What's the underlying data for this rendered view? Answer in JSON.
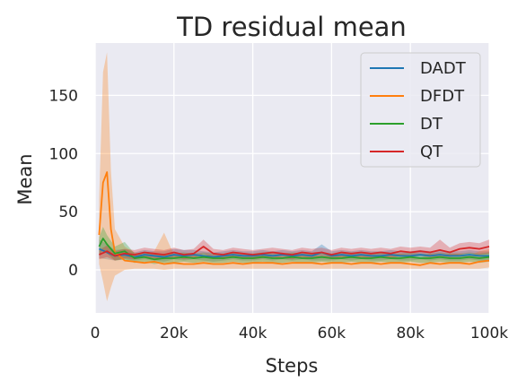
{
  "chart_data": {
    "type": "line",
    "title": "TD residual mean",
    "xlabel": "Steps",
    "ylabel": "Mean",
    "xlim": [
      0,
      100000
    ],
    "ylim": [
      -37,
      195
    ],
    "xticks": [
      0,
      20000,
      40000,
      60000,
      80000,
      100000
    ],
    "xtick_labels": [
      "0",
      "20k",
      "40k",
      "60k",
      "80k",
      "100k"
    ],
    "yticks": [
      0,
      50,
      100,
      150
    ],
    "ytick_labels": [
      "0",
      "50",
      "100",
      "150"
    ],
    "grid": true,
    "legend_position": "top-right",
    "series": [
      {
        "name": "DADT",
        "color": "#1f77b4",
        "x": [
          1000,
          3000,
          5000,
          7500,
          10000,
          12500,
          15000,
          17500,
          20000,
          22500,
          25000,
          27500,
          30000,
          32500,
          35000,
          37500,
          40000,
          42500,
          45000,
          47500,
          50000,
          52500,
          55000,
          57500,
          60000,
          62500,
          65000,
          67500,
          70000,
          72500,
          75000,
          77500,
          80000,
          82500,
          85000,
          87500,
          90000,
          92500,
          95000,
          97500,
          100000
        ],
        "y": [
          18,
          15,
          12,
          13,
          11,
          13,
          12,
          11,
          13,
          12,
          13,
          12,
          11,
          12,
          13,
          12,
          12,
          13,
          12,
          13,
          12,
          13,
          12,
          15,
          12,
          13,
          12,
          13,
          12,
          12,
          13,
          12,
          12,
          13,
          12,
          13,
          12,
          12,
          13,
          12,
          12
        ],
        "lower": [
          10,
          9,
          8,
          9,
          8,
          9,
          8,
          7,
          9,
          8,
          9,
          8,
          7,
          8,
          9,
          8,
          8,
          9,
          8,
          9,
          8,
          9,
          8,
          8,
          8,
          9,
          8,
          9,
          8,
          8,
          9,
          8,
          8,
          9,
          8,
          9,
          8,
          8,
          9,
          8,
          8
        ],
        "upper": [
          26,
          22,
          17,
          18,
          15,
          17,
          16,
          16,
          18,
          17,
          17,
          16,
          15,
          16,
          17,
          16,
          16,
          17,
          16,
          17,
          16,
          17,
          16,
          22,
          16,
          17,
          16,
          17,
          16,
          16,
          17,
          16,
          16,
          17,
          16,
          17,
          16,
          16,
          17,
          16,
          16
        ]
      },
      {
        "name": "DFDT",
        "color": "#ff7f0e",
        "x": [
          1000,
          2000,
          3000,
          4000,
          5000,
          7500,
          10000,
          12500,
          15000,
          17500,
          20000,
          22500,
          25000,
          27500,
          30000,
          32500,
          35000,
          37500,
          40000,
          42500,
          45000,
          47500,
          50000,
          52500,
          55000,
          57500,
          60000,
          62500,
          65000,
          67500,
          70000,
          72500,
          75000,
          77500,
          80000,
          82500,
          85000,
          87500,
          90000,
          92500,
          95000,
          97500,
          100000
        ],
        "y": [
          30,
          75,
          84,
          35,
          15,
          8,
          7,
          6,
          7,
          5,
          6,
          5,
          5,
          6,
          5,
          5,
          6,
          5,
          6,
          6,
          6,
          5,
          6,
          6,
          6,
          5,
          6,
          6,
          5,
          6,
          6,
          5,
          6,
          6,
          5,
          4,
          6,
          5,
          6,
          6,
          5,
          7,
          8
        ],
        "lower": [
          5,
          -10,
          -27,
          -15,
          -5,
          0,
          1,
          1,
          1,
          0,
          1,
          1,
          1,
          1,
          1,
          1,
          1,
          1,
          1,
          1,
          1,
          1,
          1,
          1,
          1,
          1,
          1,
          1,
          1,
          1,
          1,
          1,
          1,
          1,
          1,
          1,
          1,
          1,
          1,
          1,
          1,
          1,
          2
        ],
        "upper": [
          60,
          170,
          187,
          85,
          35,
          20,
          15,
          13,
          16,
          32,
          13,
          11,
          12,
          14,
          12,
          12,
          14,
          12,
          13,
          14,
          13,
          11,
          13,
          14,
          13,
          11,
          13,
          13,
          11,
          13,
          13,
          11,
          13,
          14,
          12,
          10,
          14,
          12,
          14,
          14,
          12,
          16,
          18
        ]
      },
      {
        "name": "DT",
        "color": "#2ca02c",
        "x": [
          1000,
          2000,
          3000,
          5000,
          7500,
          10000,
          12500,
          15000,
          17500,
          20000,
          22500,
          25000,
          27500,
          30000,
          32500,
          35000,
          37500,
          40000,
          42500,
          45000,
          47500,
          50000,
          52500,
          55000,
          57500,
          60000,
          62500,
          65000,
          67500,
          70000,
          72500,
          75000,
          77500,
          80000,
          82500,
          85000,
          87500,
          90000,
          92500,
          95000,
          97500,
          100000
        ],
        "y": [
          20,
          27,
          22,
          14,
          16,
          10,
          11,
          9,
          10,
          10,
          11,
          10,
          11,
          10,
          10,
          11,
          10,
          10,
          11,
          10,
          10,
          11,
          10,
          10,
          11,
          10,
          10,
          11,
          10,
          10,
          11,
          10,
          10,
          11,
          10,
          10,
          11,
          10,
          10,
          11,
          10,
          11
        ],
        "lower": [
          12,
          17,
          14,
          8,
          9,
          6,
          7,
          5,
          6,
          6,
          7,
          6,
          7,
          6,
          6,
          7,
          6,
          6,
          7,
          6,
          6,
          7,
          6,
          6,
          7,
          6,
          6,
          7,
          6,
          6,
          7,
          6,
          6,
          7,
          6,
          6,
          7,
          6,
          6,
          7,
          6,
          7
        ],
        "upper": [
          28,
          37,
          30,
          20,
          24,
          14,
          15,
          13,
          14,
          14,
          15,
          14,
          15,
          14,
          14,
          15,
          14,
          14,
          15,
          14,
          14,
          15,
          14,
          14,
          15,
          14,
          14,
          15,
          14,
          14,
          15,
          14,
          14,
          15,
          14,
          14,
          15,
          14,
          14,
          15,
          14,
          15
        ]
      },
      {
        "name": "QT",
        "color": "#d62728",
        "x": [
          1000,
          3000,
          5000,
          7500,
          10000,
          12500,
          15000,
          17500,
          20000,
          22500,
          25000,
          27500,
          30000,
          32500,
          35000,
          37500,
          40000,
          42500,
          45000,
          47500,
          50000,
          52500,
          55000,
          57500,
          60000,
          62500,
          65000,
          67500,
          70000,
          72500,
          75000,
          77500,
          80000,
          82500,
          85000,
          87500,
          90000,
          92500,
          95000,
          97500,
          100000
        ],
        "y": [
          13,
          16,
          12,
          14,
          13,
          15,
          14,
          13,
          15,
          13,
          14,
          20,
          14,
          13,
          15,
          14,
          13,
          14,
          15,
          14,
          13,
          15,
          14,
          15,
          13,
          15,
          14,
          15,
          14,
          15,
          14,
          16,
          15,
          16,
          15,
          17,
          15,
          18,
          19,
          18,
          20
        ],
        "lower": [
          9,
          11,
          8,
          10,
          9,
          11,
          10,
          9,
          11,
          9,
          10,
          14,
          10,
          9,
          11,
          10,
          9,
          10,
          11,
          10,
          9,
          11,
          10,
          11,
          9,
          11,
          10,
          11,
          10,
          11,
          10,
          12,
          11,
          12,
          11,
          12,
          11,
          13,
          14,
          13,
          14
        ],
        "upper": [
          17,
          21,
          16,
          18,
          17,
          19,
          18,
          17,
          19,
          17,
          18,
          26,
          18,
          17,
          19,
          18,
          17,
          18,
          19,
          18,
          17,
          19,
          18,
          19,
          17,
          19,
          18,
          19,
          18,
          19,
          18,
          20,
          19,
          20,
          19,
          26,
          19,
          23,
          24,
          23,
          26
        ]
      }
    ]
  }
}
